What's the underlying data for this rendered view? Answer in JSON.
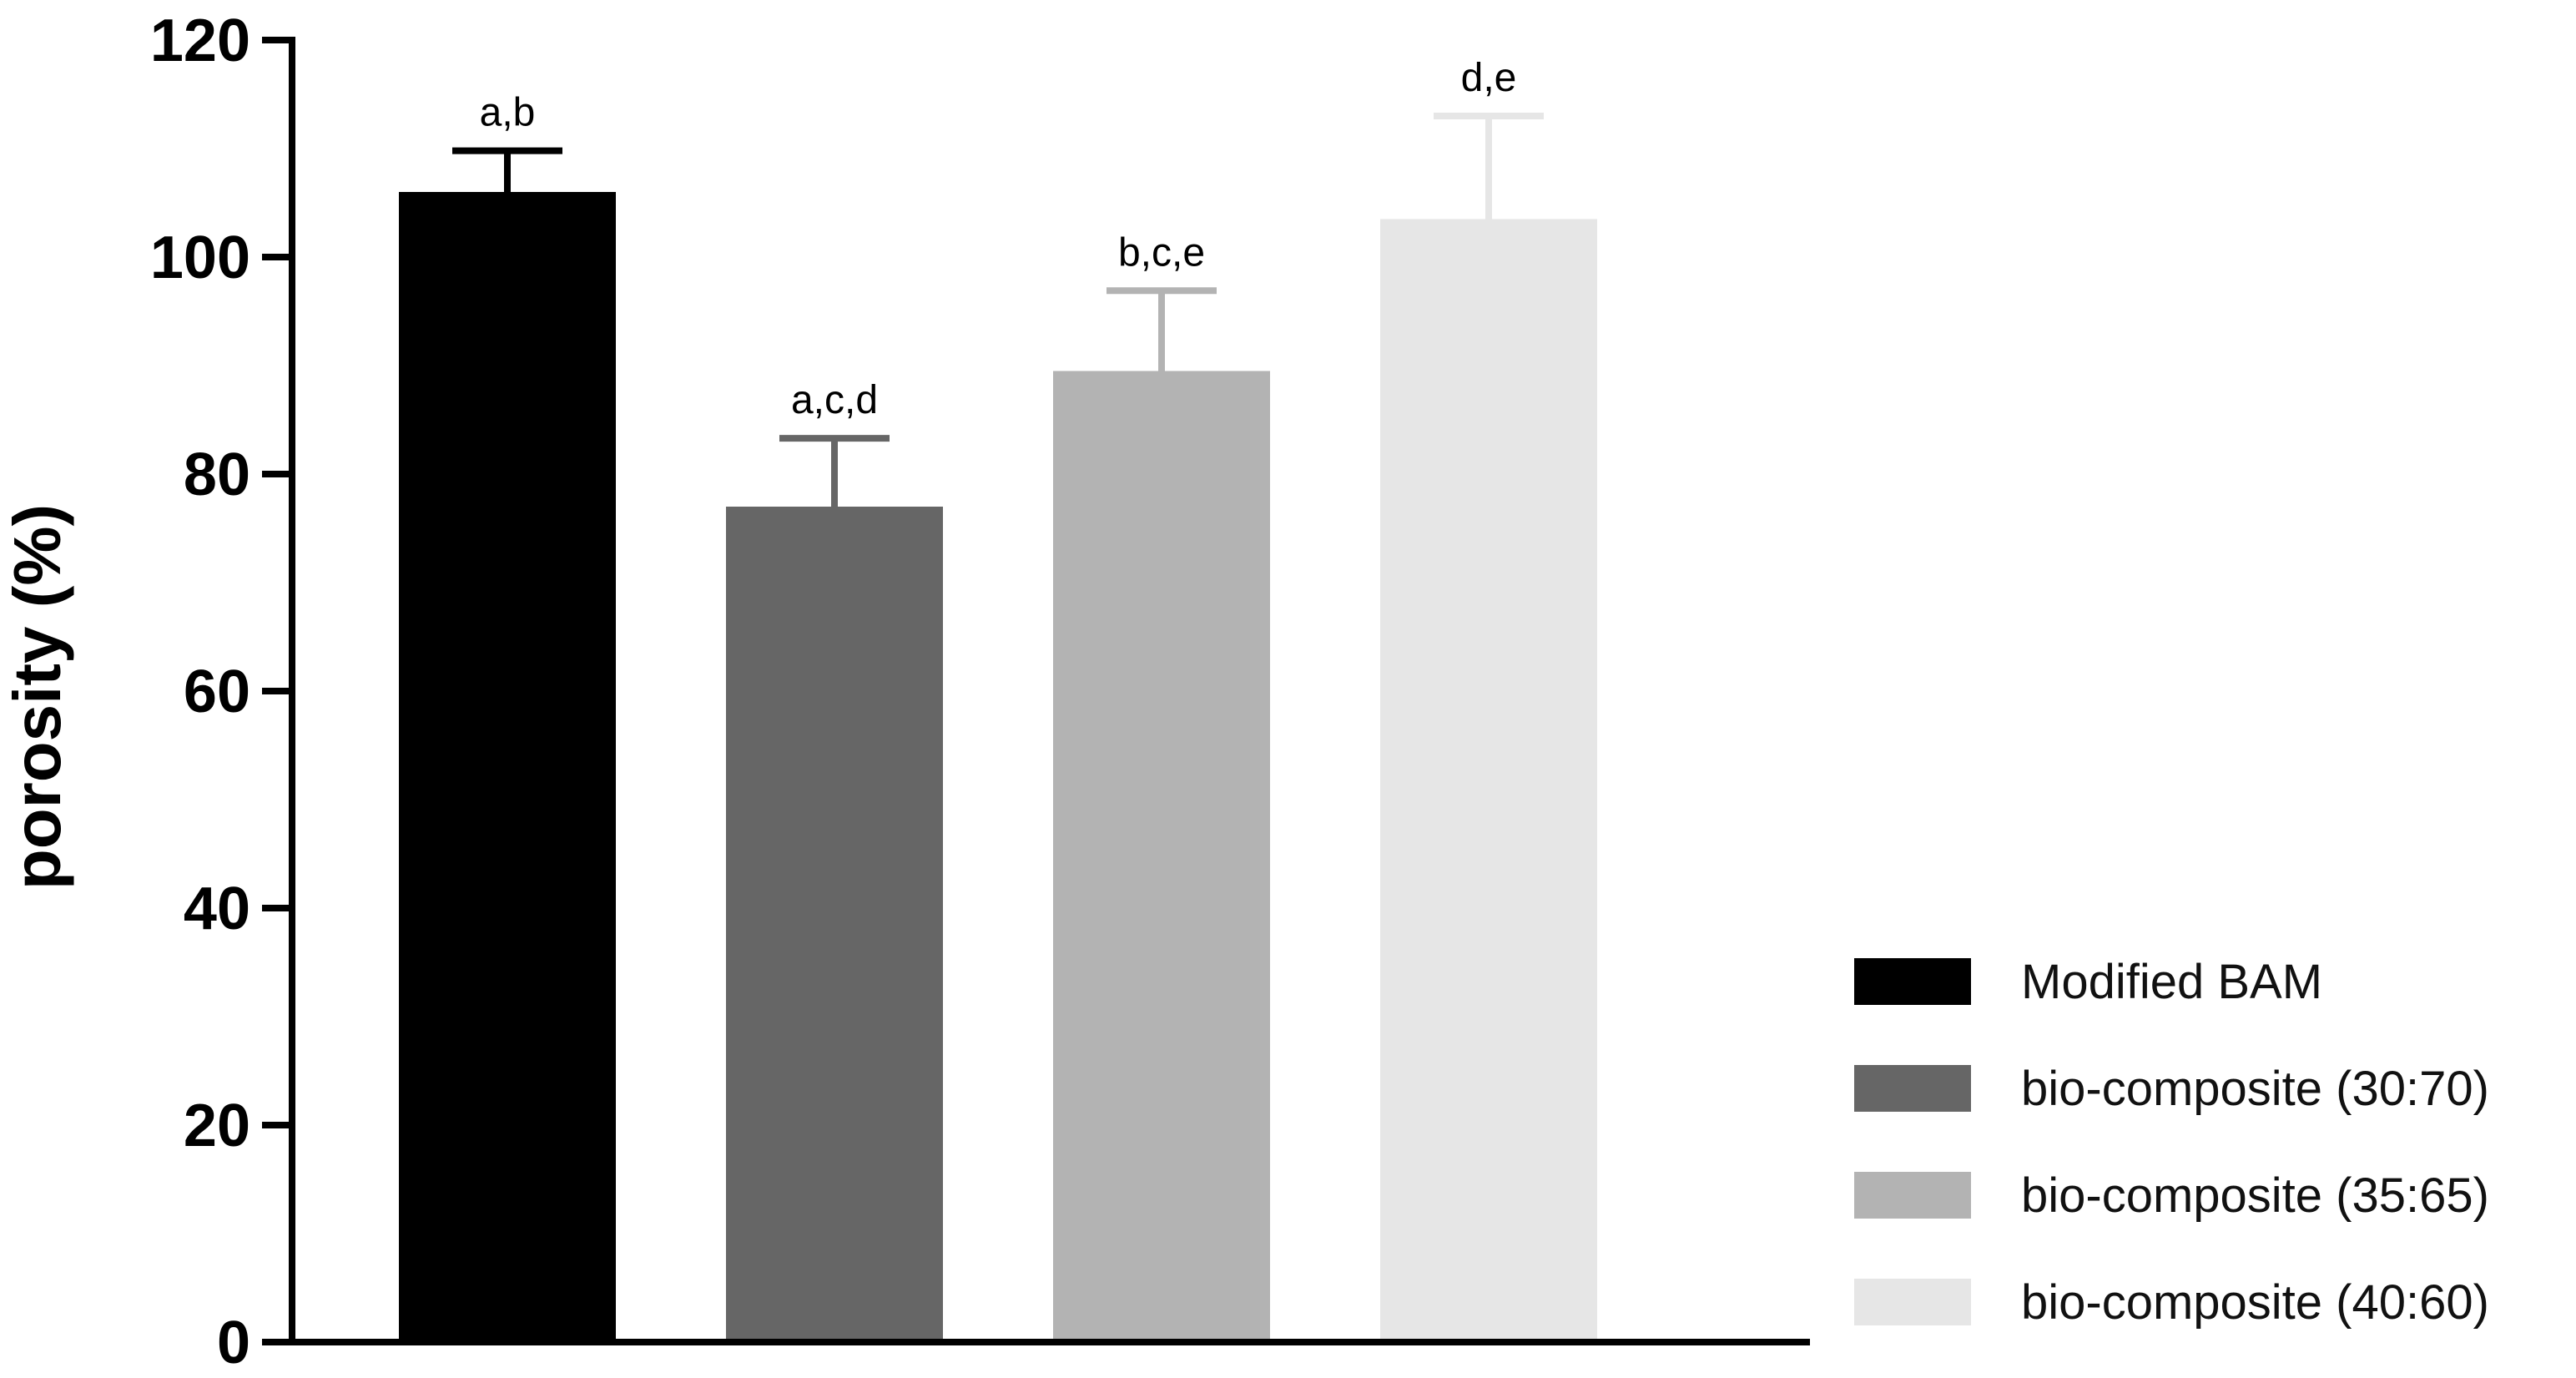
{
  "chart_data": {
    "type": "bar",
    "title": "",
    "xlabel": "",
    "ylabel": "porosity (%)",
    "ylim": [
      0,
      120
    ],
    "yticks": [
      0,
      20,
      40,
      60,
      80,
      100,
      120
    ],
    "ytick_labels": [
      "0",
      "20",
      "40",
      "60",
      "80",
      "100",
      "120"
    ],
    "grid": false,
    "legend_position": "bottom-right",
    "categories": [
      "Modified BAM",
      "bio-composite (30:70)",
      "bio-composite (35:65)",
      "bio-composite (40:60)"
    ],
    "values": [
      106,
      77,
      89.5,
      103.5
    ],
    "errors": [
      3.8,
      6.3,
      7.4,
      9.5
    ],
    "annotations": [
      "a,b",
      "a,c,d",
      "b,c,e",
      "d,e"
    ],
    "colors": [
      "#000000",
      "#666666",
      "#b3b3b3",
      "#e6e6e6"
    ]
  }
}
